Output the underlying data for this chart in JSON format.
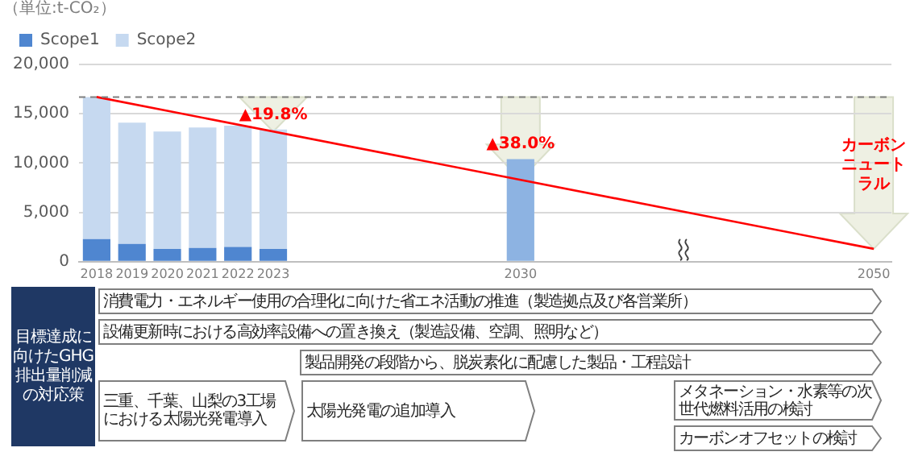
{
  "chart_data": {
    "type": "bar",
    "stacked": true,
    "categories": [
      "2018",
      "2019",
      "2020",
      "2021",
      "2022",
      "2023",
      null,
      null,
      null,
      null,
      null,
      null,
      "2030",
      null,
      null,
      null,
      null,
      null,
      null,
      null,
      null,
      null,
      "2050"
    ],
    "series": [
      {
        "name": "Scope1",
        "color": "#4f86d0",
        "values": [
          2300,
          1800,
          1300,
          1400,
          1500,
          1300,
          null,
          null,
          null,
          null,
          null,
          null,
          null,
          null,
          null,
          null,
          null,
          null,
          null,
          null,
          null,
          null,
          null
        ]
      },
      {
        "name": "Scope2",
        "color": "#c6d9f0",
        "values": [
          14400,
          12300,
          11900,
          12200,
          12300,
          12100,
          null,
          null,
          null,
          null,
          null,
          null,
          null,
          null,
          null,
          null,
          null,
          null,
          null,
          null,
          null,
          null,
          null
        ]
      },
      {
        "color": "#8db3e2",
        "values": [
          null,
          null,
          null,
          null,
          null,
          null,
          null,
          null,
          null,
          null,
          null,
          null,
          10400,
          null,
          null,
          null,
          null,
          null,
          null,
          null,
          null,
          null,
          null
        ]
      },
      {
        "type": "line",
        "color": "#ff0000",
        "values": [
          16700,
          null,
          null,
          null,
          null,
          null,
          null,
          null,
          null,
          null,
          null,
          null,
          null,
          null,
          null,
          null,
          null,
          null,
          null,
          null,
          null,
          null,
          1300
        ]
      }
    ],
    "marker": "none",
    "ylim": [
      0,
      20000
    ],
    "yticks": [
      0,
      {
        "value": 5000,
        "label": "5,000"
      },
      {
        "value": 10000,
        "label": "10,000"
      },
      {
        "value": 15000,
        "label": "15,000"
      },
      {
        "value": 20000,
        "label": "20,000"
      }
    ],
    "grid": "y",
    "legend": "top left",
    "ref_lines": [
      {
        "axis": "y",
        "value": 16700,
        "line_style": "dashed",
        "color": "#7f7f7f"
      }
    ],
    "annotations": [
      "▲19.8%",
      "▲38.0%",
      "カーボンニュートラル",
      "（単位:t-CO₂）",
      "目標達成に向けたGHG排出量削減の対応策",
      "消費電力・エネルギー使用の合理化に向けた省エネ活動の推進（製造拠点及び各営業所）",
      "設備更新時における高効率設備への置き換え（製造設備、空調、照明など）",
      "製品開発の段階から、脱炭素化に配慮した製品・工程設計",
      "三重、千葉、山梨の3工場における太陽光発電導入",
      "太陽光発電の追加導入",
      "メタネーション・水素等の次世代燃料活用の検討",
      "カーボンオフセットの検討"
    ]
  }
}
